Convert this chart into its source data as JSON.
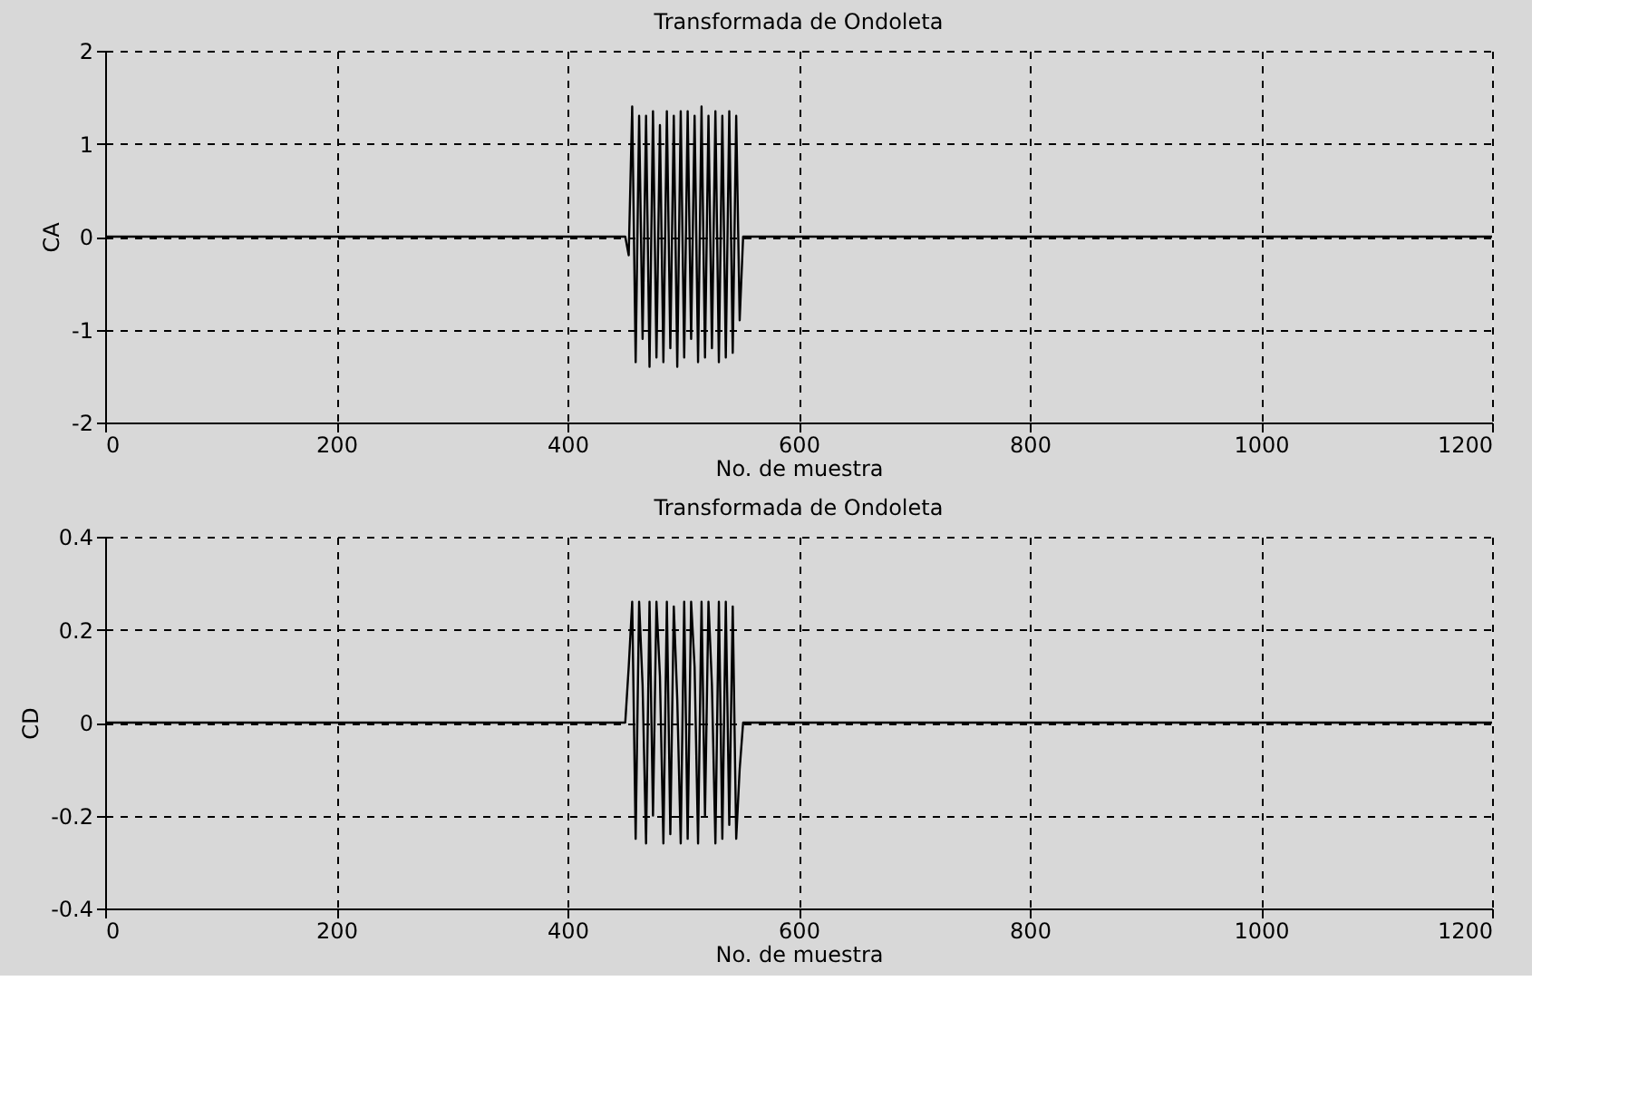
{
  "chart_data": [
    {
      "type": "line",
      "title": "Transformada de Ondoleta",
      "xlabel": "No. de muestra",
      "ylabel": "CA",
      "xlim": [
        0,
        1200
      ],
      "xticks": [
        0,
        200,
        400,
        600,
        800,
        1000,
        1200
      ],
      "ylim": [
        -2,
        2
      ],
      "yticks": [
        -2,
        -1,
        0,
        1,
        2
      ],
      "grid": true,
      "legend": false,
      "marker": "none",
      "line_style": "solid",
      "series": [
        {
          "color": "#000000",
          "x": [
            0,
            450,
            453,
            456,
            459,
            462,
            465,
            468,
            471,
            474,
            477,
            480,
            483,
            486,
            489,
            492,
            495,
            498,
            501,
            504,
            507,
            510,
            513,
            516,
            519,
            522,
            525,
            528,
            531,
            534,
            537,
            540,
            543,
            546,
            549,
            552,
            1200
          ],
          "values": [
            0,
            0,
            -0.2,
            1.4,
            -1.35,
            1.3,
            -1.1,
            1.3,
            -1.4,
            1.35,
            -1.3,
            1.2,
            -1.35,
            1.35,
            -1.2,
            1.3,
            -1.4,
            1.35,
            -1.3,
            1.35,
            -1.1,
            1.3,
            -1.35,
            1.4,
            -1.3,
            1.3,
            -1.2,
            1.35,
            -1.35,
            1.3,
            -1.3,
            1.35,
            -1.25,
            1.3,
            -0.9,
            0,
            0
          ]
        }
      ]
    },
    {
      "type": "line",
      "title": "Transformada de Ondoleta",
      "xlabel": "No. de muestra",
      "ylabel": "CD",
      "xlim": [
        0,
        1200
      ],
      "xticks": [
        0,
        200,
        400,
        600,
        800,
        1000,
        1200
      ],
      "ylim": [
        -0.4,
        0.4
      ],
      "yticks": [
        -0.4,
        -0.2,
        0,
        0.2,
        0.4
      ],
      "grid": true,
      "legend": false,
      "marker": "none",
      "line_style": "solid",
      "series": [
        {
          "color": "#000000",
          "x": [
            0,
            450,
            453,
            456,
            459,
            462,
            465,
            468,
            471,
            474,
            477,
            480,
            483,
            486,
            489,
            492,
            495,
            498,
            501,
            504,
            507,
            510,
            513,
            516,
            519,
            522,
            525,
            528,
            531,
            534,
            537,
            540,
            543,
            546,
            549,
            552,
            1200
          ],
          "values": [
            0,
            0,
            0.12,
            0.26,
            -0.25,
            0.26,
            0.08,
            -0.26,
            0.26,
            -0.2,
            0.26,
            0.1,
            -0.26,
            0.26,
            -0.24,
            0.25,
            0.05,
            -0.26,
            0.26,
            -0.25,
            0.26,
            0.12,
            -0.26,
            0.26,
            -0.2,
            0.26,
            0.08,
            -0.26,
            0.26,
            -0.25,
            0.26,
            -0.22,
            0.25,
            -0.25,
            -0.1,
            0,
            0
          ]
        }
      ]
    }
  ]
}
